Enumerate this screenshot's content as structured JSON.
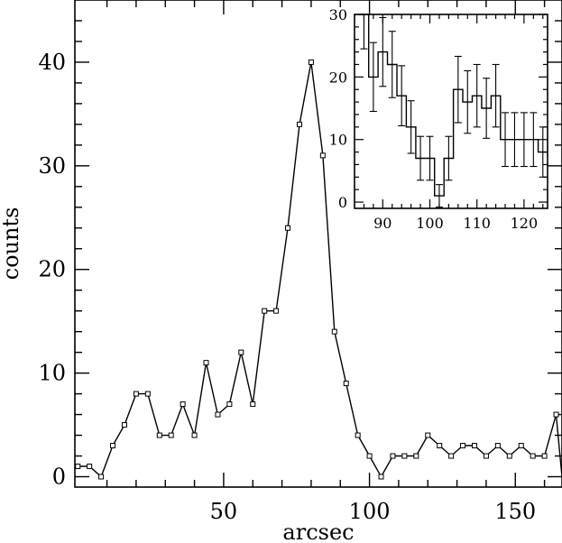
{
  "chart_data": [
    {
      "type": "line",
      "xlabel": "arcsec",
      "ylabel": "counts",
      "xlim": [
        -1,
        166
      ],
      "ylim": [
        -1,
        46
      ],
      "xticks": [
        50,
        100,
        150
      ],
      "yticks": [
        0,
        10,
        20,
        30,
        40
      ],
      "marker": "open-square",
      "grid": false,
      "x": [
        0,
        4,
        8,
        12,
        16,
        20,
        24,
        28,
        32,
        36,
        40,
        44,
        48,
        52,
        56,
        60,
        64,
        68,
        72,
        76,
        80,
        84,
        88,
        92,
        96,
        100,
        104,
        108,
        112,
        116,
        120,
        124,
        128,
        132,
        136,
        140,
        144,
        148,
        152,
        156,
        160,
        164,
        166
      ],
      "values": [
        1,
        1,
        0,
        3,
        5,
        8,
        8,
        4,
        4,
        7,
        4,
        11,
        6,
        7,
        12,
        7,
        16,
        16,
        24,
        34,
        40,
        31,
        14,
        9,
        4,
        2,
        0,
        2,
        2,
        2,
        4,
        3,
        2,
        3,
        3,
        2,
        3,
        2,
        3,
        2,
        2,
        6,
        0
      ]
    },
    {
      "type": "line",
      "style": "step-with-error-bars",
      "placement": "inset-top-right",
      "xlim": [
        84,
        125
      ],
      "ylim": [
        -1,
        30
      ],
      "xticks": [
        90,
        100,
        110,
        120
      ],
      "yticks": [
        0,
        10,
        20,
        30
      ],
      "x": [
        86,
        88,
        90,
        92,
        94,
        96,
        98,
        100,
        102,
        104,
        106,
        108,
        110,
        112,
        114,
        116,
        118,
        120,
        122,
        124
      ],
      "values": [
        30,
        20,
        24,
        22,
        17,
        12,
        7,
        7,
        1,
        7,
        18,
        16,
        17,
        15,
        17,
        10,
        10,
        10,
        10,
        8
      ],
      "errors": [
        5.5,
        5.5,
        5.5,
        5.3,
        4.8,
        4.2,
        3.5,
        3.5,
        1.8,
        3.5,
        5.3,
        5.0,
        5.0,
        4.8,
        5.0,
        4.3,
        4.3,
        4.3,
        4.3,
        4.0
      ]
    }
  ]
}
